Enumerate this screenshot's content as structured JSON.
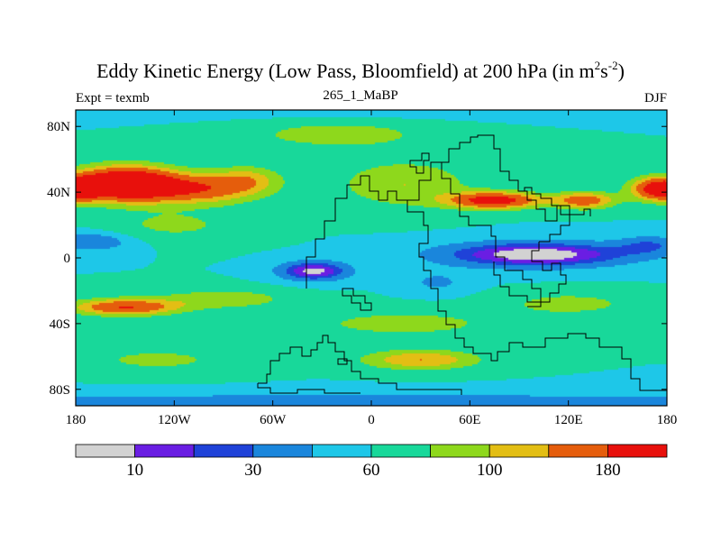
{
  "chart_data": {
    "type": "heatmap",
    "title_text": "Eddy Kinetic Energy (Low Pass, Bloomfield) at 200 hPa (in m",
    "title_unit_sup1": "2",
    "title_unit_s": "s",
    "title_unit_sup2": "-2",
    "title_close": ")",
    "left_subtitle": "Expt = texmb",
    "center_subtitle": "265_1_MaBP",
    "right_subtitle": "DJF",
    "x_tick_labels": [
      "180",
      "120W",
      "60W",
      "0",
      "60E",
      "120E",
      "180"
    ],
    "x_ticks": [
      -180,
      -120,
      -60,
      0,
      60,
      120,
      180
    ],
    "y_tick_labels": [
      "80N",
      "40N",
      "0",
      "40S",
      "80S"
    ],
    "y_ticks": [
      80,
      40,
      0,
      -40,
      -80
    ],
    "xlim": [
      -180,
      180
    ],
    "ylim": [
      -90,
      90
    ],
    "contour_levels": [
      0,
      10,
      20,
      30,
      45,
      60,
      80,
      100,
      120,
      150,
      180
    ],
    "colors": [
      "#d2d2d2",
      "#6a1ee3",
      "#1f42d8",
      "#1a86dc",
      "#1ec7e8",
      "#18d89a",
      "#8ed81c",
      "#e3be14",
      "#e55d0c",
      "#e8100c"
    ],
    "colorbar_labels": [
      "10",
      "30",
      "60",
      "100",
      "180"
    ],
    "colorbar_label_boxes": [
      1,
      3,
      5,
      7,
      9
    ],
    "field_samples": [
      {
        "lon": -150,
        "lat": 45,
        "value": 220
      },
      {
        "lon": 170,
        "lat": 42,
        "value": 200
      },
      {
        "lon": 80,
        "lat": 35,
        "value": 170
      },
      {
        "lon": 100,
        "lat": 0,
        "value": 8
      },
      {
        "lon": -40,
        "lat": -8,
        "value": 8
      },
      {
        "lon": -150,
        "lat": -30,
        "value": 160
      },
      {
        "lon": 10,
        "lat": -60,
        "value": 130
      },
      {
        "lon": -80,
        "lat": 80,
        "value": 60
      },
      {
        "lon": 0,
        "lat": -85,
        "value": 40
      }
    ]
  }
}
